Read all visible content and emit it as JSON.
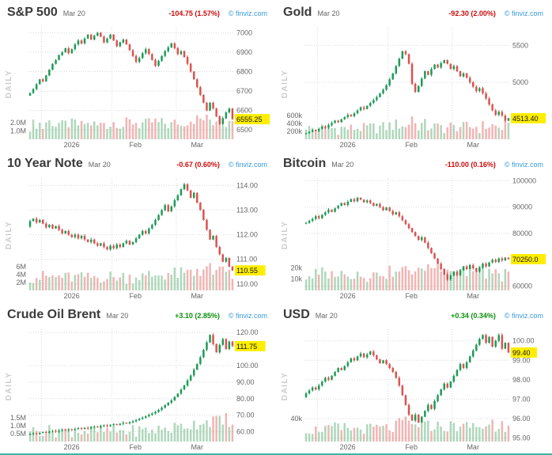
{
  "page": {
    "credit": "© finviz.com"
  },
  "colors": {
    "up": "#1d9b58",
    "down": "#d9534f",
    "vol_up": "rgba(96,175,120,0.5)",
    "vol_down": "rgba(228,120,116,0.55)",
    "green": "#0a8f0a",
    "red": "#cc0a0a",
    "link": "#3a9ad9",
    "badge_bg": "#ffee00",
    "grid": "#d9d9d9",
    "bottom_bar": "#35b8a6"
  },
  "chart_data": [
    {
      "id": "sp500",
      "type": "candlestick",
      "title": "S&P 500",
      "date": "Mar 20",
      "change": "-104.75 (1.57%)",
      "direction": "down",
      "timeframe": "DAILY",
      "last": "6555.25",
      "axis": {
        "min": 6460,
        "max": 7030
      },
      "y_ticks": [
        {
          "v": 7000,
          "label": "7000"
        },
        {
          "v": 6900,
          "label": "6900"
        },
        {
          "v": 6800,
          "label": "6800"
        },
        {
          "v": 6700,
          "label": "6700"
        },
        {
          "v": 6600,
          "label": "6600"
        },
        {
          "v": 6500,
          "label": "6500"
        }
      ],
      "vol_ticks": [
        {
          "v": 2000000,
          "label": "2.0M"
        },
        {
          "v": 1000000,
          "label": "1.0M"
        }
      ],
      "vol_axis_max": 3800000,
      "x_labels": [
        {
          "label": "2026",
          "f": 0.21
        },
        {
          "label": "Feb",
          "f": 0.52
        },
        {
          "label": "Mar",
          "f": 0.82
        }
      ],
      "month_lines": [
        0.0625,
        0.40625,
        0.71875
      ],
      "closes": [
        6690,
        6710,
        6735,
        6760,
        6750,
        6780,
        6810,
        6840,
        6860,
        6885,
        6900,
        6920,
        6895,
        6915,
        6940,
        6960,
        6945,
        6970,
        6990,
        6965,
        6985,
        7000,
        6980,
        6950,
        6970,
        6990,
        6960,
        6930,
        6950,
        6965,
        6940,
        6910,
        6880,
        6850,
        6870,
        6895,
        6915,
        6890,
        6860,
        6830,
        6855,
        6880,
        6905,
        6925,
        6945,
        6920,
        6890,
        6905,
        6875,
        6840,
        6800,
        6760,
        6720,
        6680,
        6640,
        6600,
        6640,
        6610,
        6570,
        6530,
        6560,
        6590,
        6610,
        6555.25
      ]
    },
    {
      "id": "gold",
      "type": "candlestick",
      "title": "Gold",
      "date": "Mar 20",
      "change": "-92.30 (2.00%)",
      "direction": "down",
      "timeframe": "DAILY",
      "last": "4513.40",
      "axis": {
        "min": 4250,
        "max": 5750
      },
      "y_ticks": [
        {
          "v": 5500,
          "label": "5500"
        },
        {
          "v": 5000,
          "label": "5000"
        }
      ],
      "vol_ticks": [
        {
          "v": 600000,
          "label": "600k"
        },
        {
          "v": 400000,
          "label": "400k"
        },
        {
          "v": 200000,
          "label": "200k"
        }
      ],
      "vol_axis_max": 800000,
      "x_labels": [
        {
          "label": "2026",
          "f": 0.21
        },
        {
          "label": "Feb",
          "f": 0.52
        },
        {
          "label": "Mar",
          "f": 0.82
        }
      ],
      "month_lines": [
        0.0625,
        0.40625,
        0.71875
      ],
      "closes": [
        4310,
        4330,
        4355,
        4340,
        4370,
        4400,
        4385,
        4420,
        4450,
        4480,
        4460,
        4500,
        4530,
        4560,
        4540,
        4580,
        4620,
        4660,
        4640,
        4680,
        4720,
        4760,
        4800,
        4850,
        4900,
        4960,
        5040,
        5120,
        5220,
        5320,
        5420,
        5380,
        5250,
        4980,
        4870,
        4950,
        5050,
        5150,
        5100,
        5180,
        5240,
        5200,
        5260,
        5300,
        5250,
        5180,
        5220,
        5150,
        5080,
        5120,
        5060,
        5000,
        4940,
        4880,
        4920,
        4850,
        4780,
        4700,
        4620,
        4560,
        4600,
        4550,
        4480,
        4513.4
      ]
    },
    {
      "id": "10-year-note",
      "type": "candlestick",
      "title": "10 Year Note",
      "date": "Mar 20",
      "change": "-0.67 (0.60%)",
      "direction": "down",
      "timeframe": "DAILY",
      "last": "110.55",
      "axis": {
        "min": 109.8,
        "max": 114.3
      },
      "y_ticks": [
        {
          "v": 114,
          "label": "114.00"
        },
        {
          "v": 113,
          "label": "113.00"
        },
        {
          "v": 112,
          "label": "112.00"
        },
        {
          "v": 111,
          "label": "111.00"
        },
        {
          "v": 110,
          "label": "110.00"
        }
      ],
      "vol_ticks": [
        {
          "v": 6000000,
          "label": "6M"
        },
        {
          "v": 4000000,
          "label": "4M"
        },
        {
          "v": 2000000,
          "label": "2M"
        }
      ],
      "vol_axis_max": 8000000,
      "x_labels": [
        {
          "label": "2026",
          "f": 0.21
        },
        {
          "label": "Feb",
          "f": 0.52
        },
        {
          "label": "Mar",
          "f": 0.82
        }
      ],
      "month_lines": [
        0.0625,
        0.40625,
        0.71875
      ],
      "closes": [
        112.55,
        112.65,
        112.5,
        112.6,
        112.45,
        112.3,
        112.4,
        112.25,
        112.35,
        112.2,
        112.05,
        112.15,
        112,
        111.9,
        112,
        111.85,
        111.95,
        111.8,
        111.7,
        111.8,
        111.65,
        111.55,
        111.65,
        111.5,
        111.4,
        111.55,
        111.45,
        111.6,
        111.5,
        111.65,
        111.75,
        111.6,
        111.7,
        111.85,
        112,
        112.15,
        112.05,
        112.25,
        112.4,
        112.6,
        112.8,
        113,
        113.2,
        112.95,
        113.15,
        113.4,
        113.6,
        113.85,
        114.05,
        113.8,
        113.5,
        113.7,
        113.3,
        113,
        112.6,
        112.2,
        111.8,
        111.95,
        111.5,
        111.2,
        110.9,
        111.05,
        110.7,
        110.55
      ]
    },
    {
      "id": "bitcoin",
      "type": "candlestick",
      "title": "Bitcoin",
      "date": "Mar 20",
      "change": "-110.00 (0.16%)",
      "direction": "down",
      "timeframe": "DAILY",
      "last": "70250.0",
      "axis": {
        "min": 59000,
        "max": 101000
      },
      "y_ticks": [
        {
          "v": 100000,
          "label": "100000"
        },
        {
          "v": 90000,
          "label": "90000"
        },
        {
          "v": 80000,
          "label": "80000"
        },
        {
          "v": 60000,
          "label": "60000"
        }
      ],
      "vol_ticks": [
        {
          "v": 20000,
          "label": "20k"
        },
        {
          "v": 10000,
          "label": "10k"
        }
      ],
      "vol_axis_max": 28000,
      "x_labels": [
        {
          "label": "2026",
          "f": 0.21
        },
        {
          "label": "Feb",
          "f": 0.52
        },
        {
          "label": "Mar",
          "f": 0.82
        }
      ],
      "month_lines": [
        0.0625,
        0.40625,
        0.71875
      ],
      "closes": [
        84000,
        84800,
        85500,
        86500,
        85800,
        87000,
        88000,
        89000,
        88200,
        89500,
        90500,
        91500,
        90800,
        92000,
        93000,
        92200,
        93500,
        92800,
        91800,
        92500,
        91500,
        90500,
        91200,
        90000,
        88800,
        89800,
        88500,
        87200,
        88000,
        86500,
        85000,
        83500,
        82000,
        80500,
        79000,
        77500,
        78500,
        76500,
        74500,
        72500,
        70500,
        68500,
        66500,
        64500,
        62500,
        64000,
        65500,
        64200,
        66000,
        67500,
        66500,
        68000,
        66800,
        65500,
        67000,
        68500,
        67500,
        69000,
        70000,
        69200,
        70500,
        69800,
        70800,
        70250
      ]
    },
    {
      "id": "crude-oil-brent",
      "type": "candlestick",
      "title": "Crude Oil Brent",
      "date": "Mar 20",
      "change": "+3.10 (2.85%)",
      "direction": "up",
      "timeframe": "DAILY",
      "last": "111.75",
      "axis": {
        "min": 55,
        "max": 122
      },
      "y_ticks": [
        {
          "v": 120,
          "label": "120.00"
        },
        {
          "v": 100,
          "label": "100.00"
        },
        {
          "v": 90,
          "label": "90.00"
        },
        {
          "v": 80,
          "label": "80.00"
        },
        {
          "v": 70,
          "label": "70.00"
        },
        {
          "v": 60,
          "label": "60.00"
        }
      ],
      "vol_ticks": [
        {
          "v": 1500000,
          "label": "1.5M"
        },
        {
          "v": 1000000,
          "label": "1.0M"
        },
        {
          "v": 500000,
          "label": "0.5M"
        }
      ],
      "vol_axis_max": 2000000,
      "x_labels": [
        {
          "label": "2026",
          "f": 0.21
        },
        {
          "label": "Feb",
          "f": 0.52
        },
        {
          "label": "Mar",
          "f": 0.82
        }
      ],
      "month_lines": [
        0.0625,
        0.40625,
        0.71875
      ],
      "closes": [
        58.5,
        59,
        58.6,
        59.3,
        59.8,
        59.4,
        60,
        60.5,
        60.1,
        60.7,
        61.2,
        60.8,
        61.4,
        61,
        61.6,
        62.1,
        61.7,
        62.3,
        62,
        62.6,
        63.1,
        62.7,
        63.3,
        63.8,
        63.4,
        64,
        64.5,
        64.1,
        64.8,
        65.4,
        65,
        65.7,
        66.3,
        67,
        67.8,
        68.5,
        69.3,
        70.2,
        71,
        72,
        73.2,
        74.5,
        76,
        77.5,
        79,
        81,
        83,
        85.5,
        88,
        91,
        94,
        97.5,
        101,
        105,
        109.5,
        114,
        118.5,
        113,
        108,
        112.5,
        116,
        110,
        114.5,
        111.75
      ]
    },
    {
      "id": "usd",
      "type": "candlestick",
      "title": "USD",
      "date": "Mar 20",
      "change": "+0.34 (0.34%)",
      "direction": "up",
      "timeframe": "DAILY",
      "last": "99.40",
      "axis": {
        "min": 94.9,
        "max": 100.6
      },
      "y_ticks": [
        {
          "v": 100,
          "label": "100.00"
        },
        {
          "v": 99,
          "label": "99.00"
        },
        {
          "v": 98,
          "label": "98.00"
        },
        {
          "v": 97,
          "label": "97.00"
        },
        {
          "v": 96,
          "label": "96.00"
        },
        {
          "v": 95,
          "label": "95.00"
        }
      ],
      "vol_ticks": [
        {
          "v": 40000,
          "label": "40k"
        }
      ],
      "vol_axis_max": 55000,
      "x_labels": [
        {
          "label": "2026",
          "f": 0.21
        },
        {
          "label": "Feb",
          "f": 0.52
        },
        {
          "label": "Mar",
          "f": 0.82
        }
      ],
      "month_lines": [
        0.0625,
        0.40625,
        0.71875
      ],
      "closes": [
        97.3,
        97.45,
        97.6,
        97.5,
        97.7,
        97.9,
        98.1,
        98,
        98.2,
        98.4,
        98.6,
        98.5,
        98.7,
        98.9,
        99.1,
        99,
        99.2,
        99.35,
        99.15,
        99.3,
        99.45,
        99.25,
        99.05,
        98.85,
        99,
        98.8,
        98.6,
        98.4,
        98.1,
        97.7,
        97.2,
        96.7,
        96.2,
        95.9,
        96.2,
        95.8,
        96.1,
        96.4,
        96.7,
        96.5,
        96.9,
        97.2,
        97.5,
        97.8,
        97.6,
        97.9,
        98.2,
        98.5,
        98.8,
        98.6,
        98.9,
        99.2,
        99.5,
        99.8,
        100.1,
        100.3,
        99.9,
        100.2,
        99.7,
        100,
        100.3,
        99.6,
        99.9,
        99.4
      ]
    }
  ]
}
